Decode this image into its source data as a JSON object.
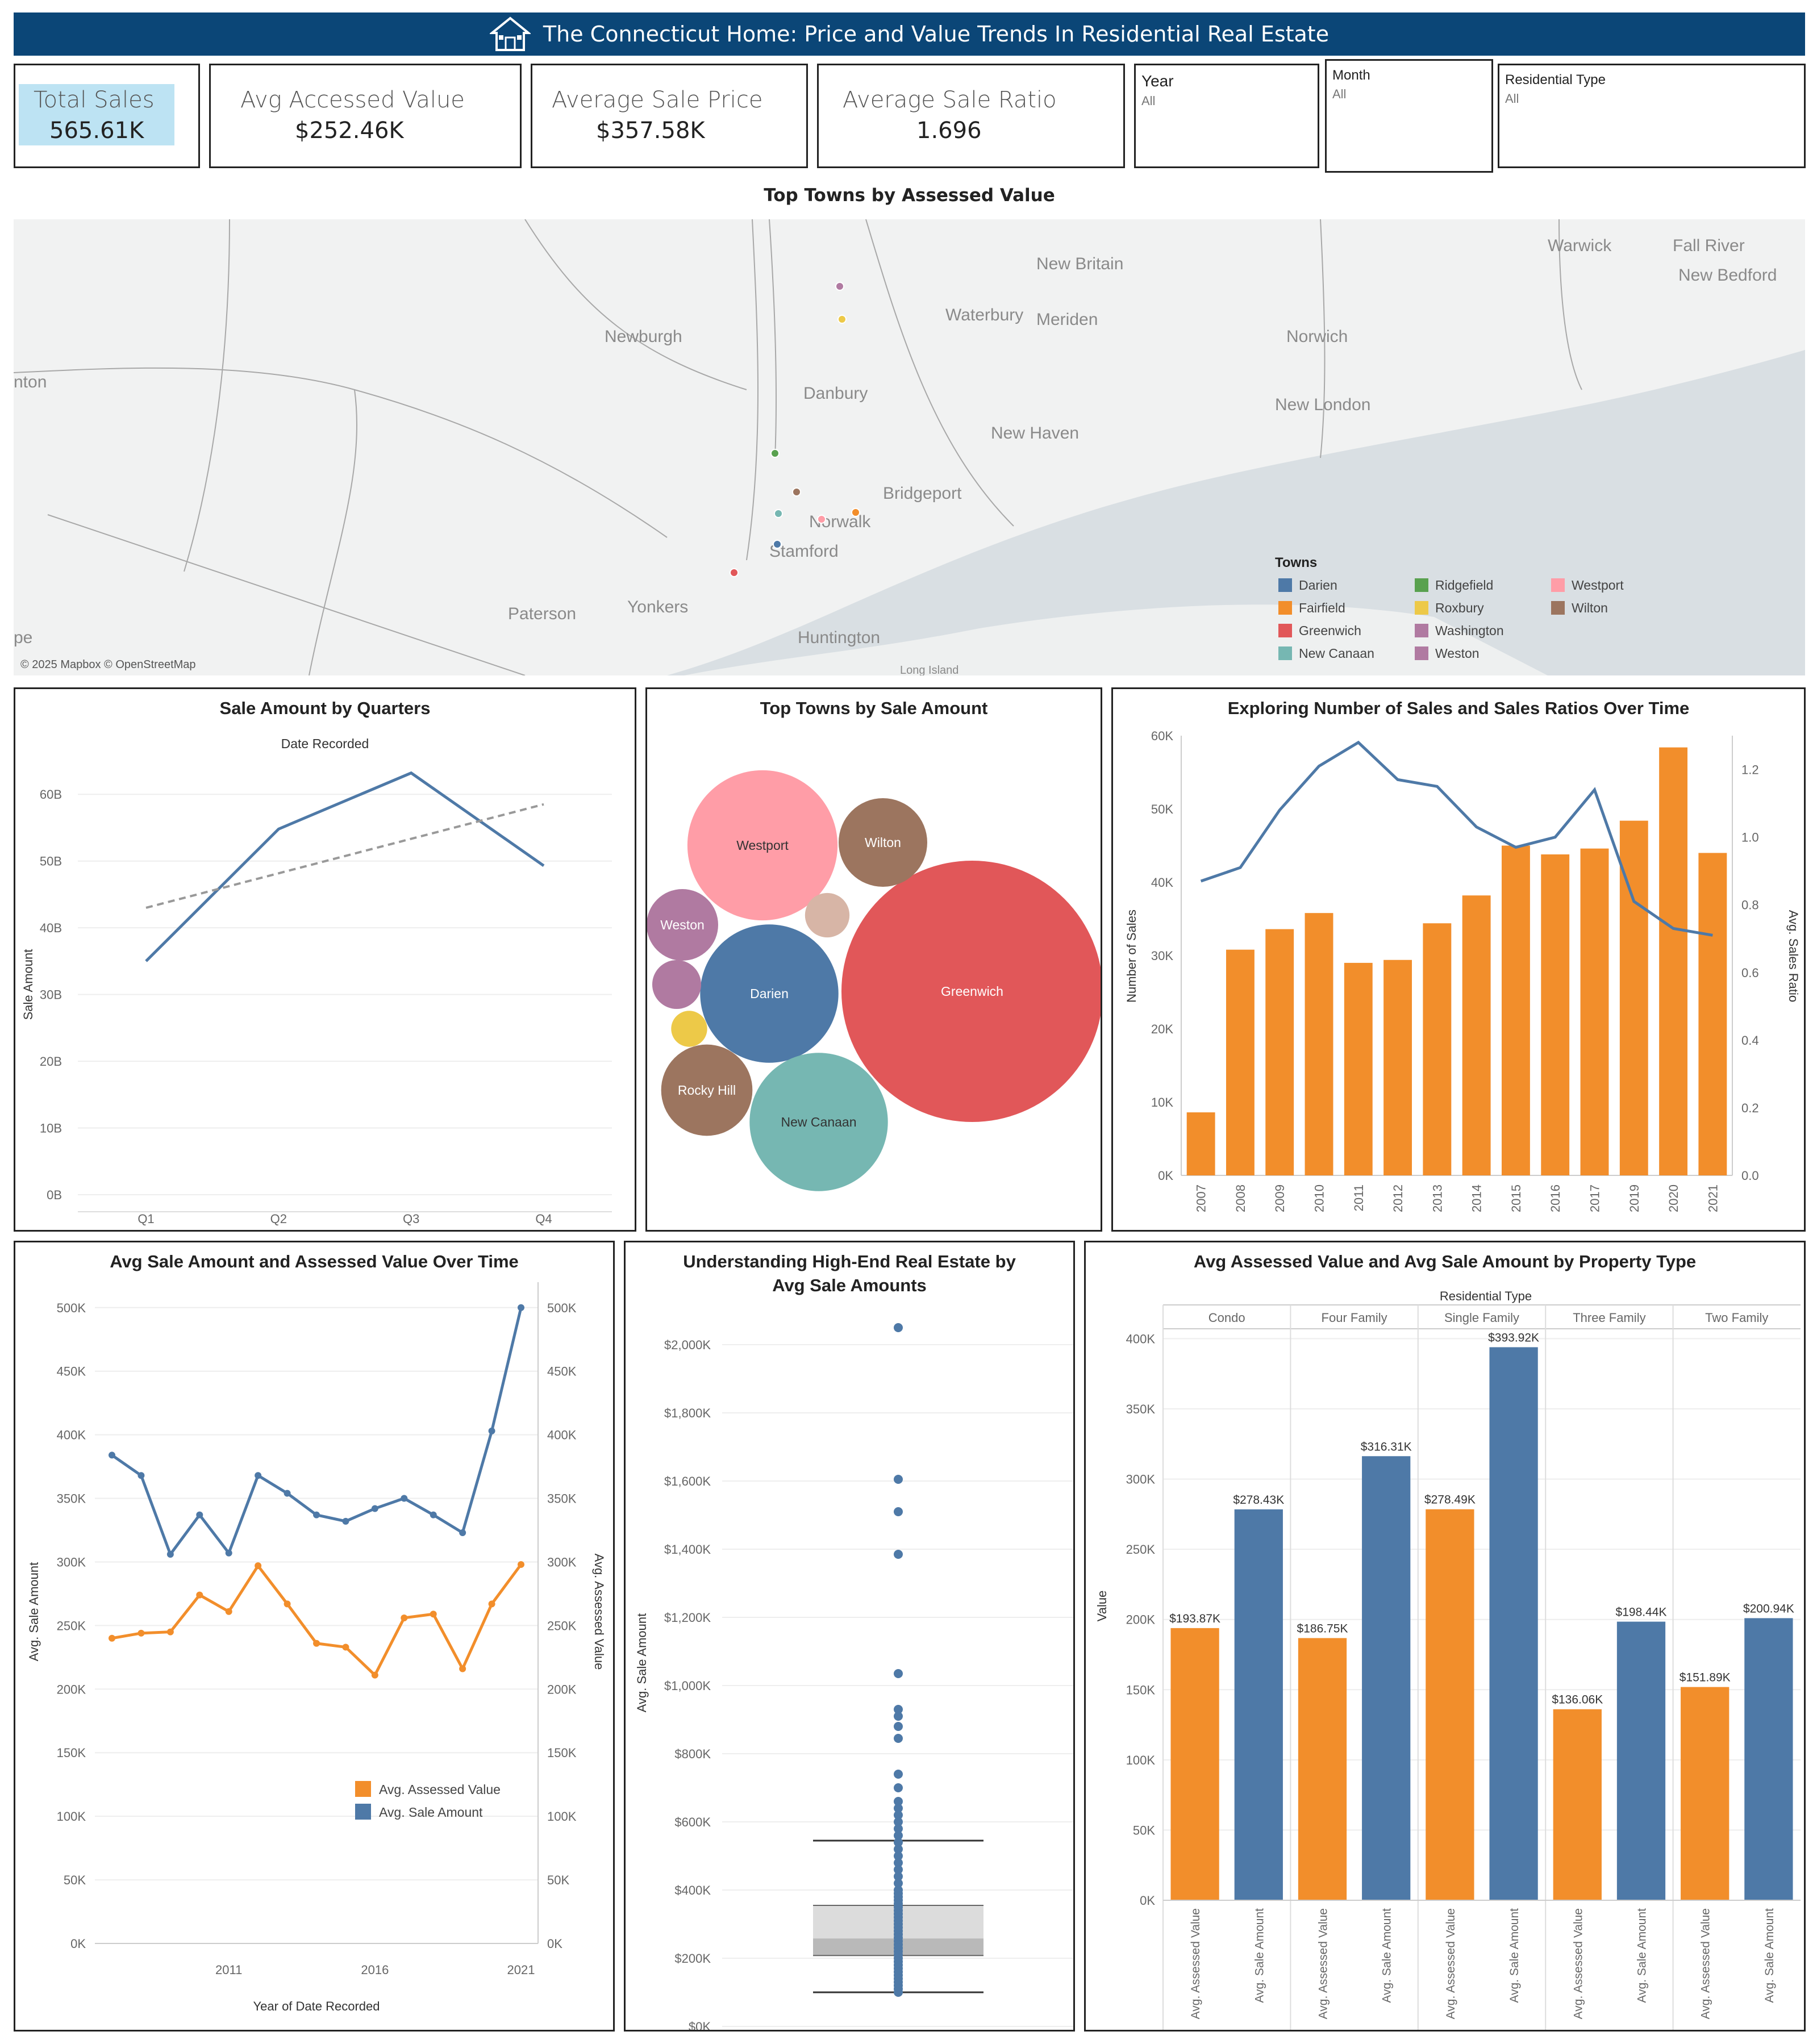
{
  "header": {
    "title": "The Connecticut Home: Price and Value Trends In Residential Real Estate"
  },
  "kpis": [
    {
      "label": "Total Sales",
      "value": "565.61K"
    },
    {
      "label": "Avg Accessed Value",
      "value": "$252.46K"
    },
    {
      "label": "Average Sale Price",
      "value": "$357.58K"
    },
    {
      "label": "Average Sale Ratio",
      "value": "1.696"
    }
  ],
  "filters": [
    {
      "label": "Year",
      "value": "All"
    },
    {
      "label": "Month",
      "value": "All"
    },
    {
      "label": "Residential Type",
      "value": "All"
    }
  ],
  "map": {
    "title": "Top Towns by Assessed Value",
    "attribution": "© 2025 Mapbox © OpenStreetMap",
    "place_labels": [
      "Warwick",
      "Fall River",
      "New Bedford",
      "New Britain",
      "Waterbury",
      "Meriden",
      "Norwich",
      "Newburgh",
      "nton",
      "Danbury",
      "New Haven",
      "New London",
      "Bridgeport",
      "Norwalk",
      "Stamford",
      "Paterson",
      "Yonkers",
      "Huntington",
      "pe",
      "Long Island"
    ],
    "legend_title": "Towns",
    "legend": [
      {
        "name": "Darien",
        "color": "#4e79a7"
      },
      {
        "name": "Fairfield",
        "color": "#f28e2b"
      },
      {
        "name": "Greenwich",
        "color": "#e15759"
      },
      {
        "name": "New Canaan",
        "color": "#76b7b2"
      },
      {
        "name": "Ridgefield",
        "color": "#59a14f"
      },
      {
        "name": "Roxbury",
        "color": "#edc948"
      },
      {
        "name": "Washington",
        "color": "#b07aa1"
      },
      {
        "name": "Weston",
        "color": "#b07aa1"
      },
      {
        "name": "Westport",
        "color": "#ff9da7"
      },
      {
        "name": "Wilton",
        "color": "#9c755f"
      }
    ]
  },
  "chart_data": [
    {
      "type": "line",
      "title": "Sale Amount by Quarters",
      "subtitle": "Date Recorded",
      "ylabel": "Sale Amount",
      "categories": [
        "Q1",
        "Q2",
        "Q3",
        "Q4"
      ],
      "series": [
        {
          "values": [
            35,
            54.8,
            63.2,
            49.3
          ]
        }
      ],
      "trend": [
        43,
        58.5
      ],
      "ylim": [
        0,
        63
      ],
      "yticks": [
        "0B",
        "10B",
        "20B",
        "30B",
        "40B",
        "50B",
        "60B"
      ]
    },
    {
      "type": "bubble",
      "title": "Top Towns by Sale Amount",
      "bubbles": [
        {
          "label": "Greenwich",
          "value": 100,
          "color": "#e15759"
        },
        {
          "label": "Westport",
          "value": 33,
          "color": "#ff9da7"
        },
        {
          "label": "Darien",
          "value": 28,
          "color": "#4e79a7"
        },
        {
          "label": "New Canaan",
          "value": 28,
          "color": "#76b7b2"
        },
        {
          "label": "Wilton",
          "value": 11.5,
          "color": "#9c755f"
        },
        {
          "label": "Rocky Hill",
          "value": 12.2,
          "color": "#9c755f"
        },
        {
          "label": "Weston",
          "value": 7.5,
          "color": "#b07aa1"
        },
        {
          "label": "",
          "value": 2.9,
          "color": "#d7b5a6"
        },
        {
          "label": "",
          "value": 3.5,
          "color": "#b07aa1"
        },
        {
          "label": "",
          "value": 1.9,
          "color": "#edc948"
        }
      ]
    },
    {
      "type": "bar",
      "title": "Exploring Number of Sales and Sales Ratios Over Time",
      "ylabel": "Number of Sales",
      "y2label": "Avg. Sales Ratio",
      "categories": [
        "2007",
        "2008",
        "2009",
        "2010",
        "2011",
        "2012",
        "2013",
        "2014",
        "2015",
        "2016",
        "2017",
        "2019",
        "2020",
        "2021"
      ],
      "bars": [
        8600,
        30800,
        33600,
        35800,
        29000,
        29400,
        34400,
        38200,
        45000,
        43800,
        44600,
        48400,
        58400,
        44000
      ],
      "line": [
        0.87,
        0.91,
        1.08,
        1.21,
        1.28,
        1.17,
        1.15,
        1.03,
        0.97,
        1.0,
        1.14,
        0.81,
        0.73,
        0.71
      ],
      "ylim": [
        0,
        60000
      ],
      "y2lim": [
        0,
        1.3
      ],
      "yticks": [
        "0K",
        "10K",
        "20K",
        "30K",
        "40K",
        "50K",
        "60K"
      ],
      "y2ticks": [
        "0.0",
        "0.2",
        "0.4",
        "0.6",
        "0.8",
        "1.0",
        "1.2"
      ]
    },
    {
      "type": "line",
      "title": "Avg Sale Amount and Assessed Value Over Time",
      "xlabel": "Year of Date Recorded",
      "ylabel": "Avg. Sale Amount",
      "y2label": "Avg. Assessed Value",
      "x": [
        2007,
        2008,
        2009,
        2010,
        2011,
        2012,
        2013,
        2014,
        2015,
        2016,
        2017,
        2018,
        2019,
        2020,
        2021
      ],
      "xticks": [
        "2011",
        "2016",
        "2021"
      ],
      "series": [
        {
          "name": "Avg. Sale Amount",
          "color": "#4e79a7",
          "values": [
            384000,
            368000,
            306000,
            337000,
            307000,
            368000,
            354000,
            337000,
            332000,
            342000,
            350000,
            337000,
            323000,
            403000,
            500000
          ]
        },
        {
          "name": "Avg. Assessed Value",
          "color": "#f28e2b",
          "values": [
            240000,
            244000,
            245000,
            274000,
            261000,
            297000,
            267000,
            236000,
            233000,
            211000,
            256000,
            259000,
            216000,
            267000,
            298000
          ]
        }
      ],
      "ylim": [
        0,
        520000
      ],
      "yticks": [
        "0K",
        "50K",
        "100K",
        "150K",
        "200K",
        "250K",
        "300K",
        "350K",
        "400K",
        "450K",
        "500K"
      ]
    },
    {
      "type": "scatter",
      "title": "Understanding High-End Real Estate by Avg Sale Amounts",
      "ylabel": "Avg. Sale Amount",
      "ylim": [
        0,
        2100
      ],
      "yticks": [
        "$0K",
        "$200K",
        "$400K",
        "$600K",
        "$800K",
        "$1,000K",
        "$1,200K",
        "$1,400K",
        "$1,600K",
        "$1,800K",
        "$2,000K"
      ],
      "points": [
        2050,
        1605,
        1510,
        1385,
        1035,
        930,
        910,
        880,
        845,
        740,
        700,
        660,
        640,
        620,
        600,
        580,
        560,
        540,
        520,
        500,
        480,
        460,
        440,
        420,
        400,
        390,
        380,
        370,
        360,
        350,
        340,
        330,
        320,
        310,
        300,
        290,
        280,
        270,
        260,
        250,
        240,
        230,
        220,
        210,
        200,
        190,
        180,
        170,
        160,
        150,
        140,
        130,
        120,
        110,
        100
      ],
      "box": {
        "whisker_low": 100,
        "q1": 208,
        "median": 258,
        "q3": 355,
        "whisker_high": 545
      }
    },
    {
      "type": "bar",
      "title": "Avg Assessed Value and Avg Sale Amount by Property Type",
      "subtitle": "Residential Type",
      "ylabel": "Value",
      "groups": [
        "Condo",
        "Four Family",
        "Single Family",
        "Three Family",
        "Two Family"
      ],
      "measures": [
        "Avg. Assessed Value",
        "Avg. Sale Amount"
      ],
      "series": [
        {
          "name": "Avg. Assessed Value",
          "color": "#f28e2b",
          "values": [
            193870,
            186750,
            278490,
            136060,
            151890
          ],
          "labels": [
            "$193.87K",
            "$186.75K",
            "$278.49K",
            "$136.06K",
            "$151.89K"
          ]
        },
        {
          "name": "Avg. Sale Amount",
          "color": "#4e79a7",
          "values": [
            278430,
            316310,
            393920,
            198440,
            200940
          ],
          "labels": [
            "$278.43K",
            "$316.31K",
            "$393.92K",
            "$198.44K",
            "$200.94K"
          ]
        }
      ],
      "ylim": [
        0,
        420000
      ],
      "yticks": [
        "0K",
        "50K",
        "100K",
        "150K",
        "200K",
        "250K",
        "300K",
        "350K",
        "400K"
      ]
    }
  ]
}
